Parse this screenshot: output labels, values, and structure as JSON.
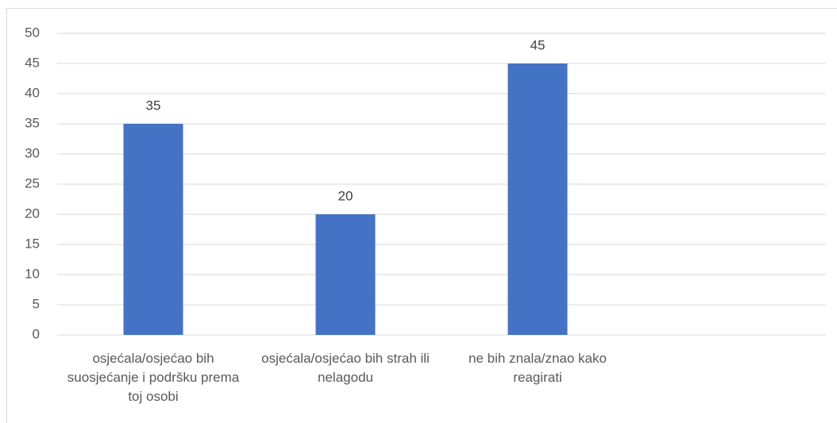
{
  "chart_data": {
    "type": "bar",
    "categories": [
      "osjećala/osjećao bih suosjećanje i podršku prema toj osobi",
      "osjećala/osjećao bih strah ili nelagodu",
      "ne bih znala/znao kako reagirati",
      null
    ],
    "values": [
      35,
      20,
      45,
      null
    ],
    "color": "#4472c4",
    "ylim": [
      0,
      50
    ],
    "yticks": [
      0,
      5,
      10,
      15,
      20,
      25,
      30,
      35,
      40,
      45,
      50
    ],
    "grid": true
  }
}
